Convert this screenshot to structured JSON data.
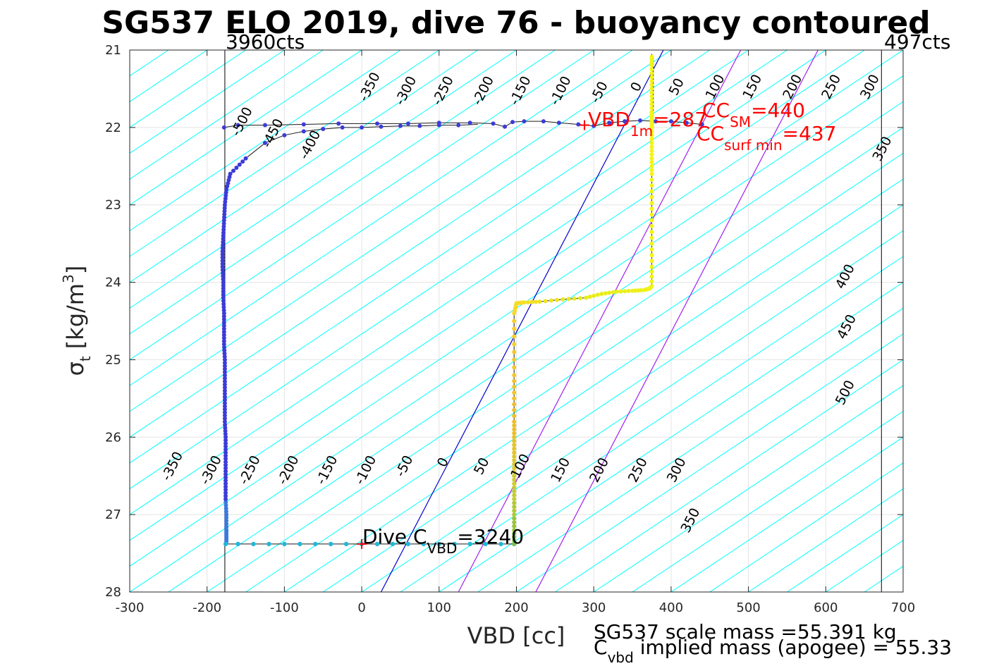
{
  "chart_data": {
    "type": "line",
    "title": "SG537 ELO 2019, dive 76 - buoyancy contoured",
    "xlabel": "VBD [cc]",
    "ylabel_main": "σ",
    "ylabel_sub": "t",
    "ylabel_unit": "[kg/m",
    "ylabel_sup": "3",
    "ylabel_close": "]",
    "xlim": [
      -300,
      700
    ],
    "ylim": [
      21,
      28
    ],
    "y_reversed": true,
    "grid": true,
    "x_ticks": [
      "-300",
      "-200",
      "-100",
      "0",
      "100",
      "200",
      "300",
      "400",
      "500",
      "600",
      "700"
    ],
    "y_ticks": [
      "21",
      "22",
      "23",
      "24",
      "25",
      "26",
      "27",
      "28"
    ],
    "contour_color": "#00ffff",
    "contour_step": 50,
    "contour_slope_per_sigma": -150,
    "contour_zero_x_at_sigma_21": 500,
    "contour_labels": [
      {
        "text": "-350",
        "x": 15,
        "y": 21.5
      },
      {
        "text": "-300",
        "x": 62,
        "y": 21.55
      },
      {
        "text": "-250",
        "x": 110,
        "y": 21.55
      },
      {
        "text": "-200",
        "x": 162,
        "y": 21.55
      },
      {
        "text": "-150",
        "x": 210,
        "y": 21.55
      },
      {
        "text": "-100",
        "x": 262,
        "y": 21.55
      },
      {
        "text": "-50",
        "x": 312,
        "y": 21.57
      },
      {
        "text": "0",
        "x": 360,
        "y": 21.5
      },
      {
        "text": "50",
        "x": 412,
        "y": 21.5
      },
      {
        "text": "100",
        "x": 462,
        "y": 21.5
      },
      {
        "text": "150",
        "x": 510,
        "y": 21.5
      },
      {
        "text": "200",
        "x": 562,
        "y": 21.5
      },
      {
        "text": "250",
        "x": 612,
        "y": 21.5
      },
      {
        "text": "300",
        "x": 662,
        "y": 21.5
      },
      {
        "text": "-500",
        "x": -150,
        "y": 21.95
      },
      {
        "text": "-450",
        "x": -110,
        "y": 22.1
      },
      {
        "text": "-400",
        "x": -62,
        "y": 22.25
      },
      {
        "text": "350",
        "x": 678,
        "y": 22.3
      },
      {
        "text": "400",
        "x": 630,
        "y": 23.95
      },
      {
        "text": "450",
        "x": 632,
        "y": 24.6
      },
      {
        "text": "500",
        "x": 630,
        "y": 25.45
      },
      {
        "text": "-350",
        "x": -240,
        "y": 26.4
      },
      {
        "text": "-300",
        "x": -190,
        "y": 26.45
      },
      {
        "text": "-250",
        "x": -140,
        "y": 26.45
      },
      {
        "text": "-200",
        "x": -90,
        "y": 26.45
      },
      {
        "text": "-150",
        "x": -40,
        "y": 26.45
      },
      {
        "text": "-100",
        "x": 10,
        "y": 26.45
      },
      {
        "text": "-50",
        "x": 60,
        "y": 26.4
      },
      {
        "text": "0",
        "x": 110,
        "y": 26.35
      },
      {
        "text": "50",
        "x": 160,
        "y": 26.4
      },
      {
        "text": "100",
        "x": 210,
        "y": 26.4
      },
      {
        "text": "150",
        "x": 262,
        "y": 26.45
      },
      {
        "text": "200",
        "x": 312,
        "y": 26.45
      },
      {
        "text": "250",
        "x": 362,
        "y": 26.45
      },
      {
        "text": "300",
        "x": 412,
        "y": 26.45
      },
      {
        "text": "350",
        "x": 430,
        "y": 27.1
      }
    ],
    "special_lines": [
      {
        "name": "",
        "color": "#0000cc",
        "x_at_21": 390,
        "x_at_28": 25
      },
      {
        "name": "",
        "color": "#a020f0",
        "x_at_21": 490,
        "x_at_28": 125
      },
      {
        "name": "",
        "color": "#a020f0",
        "x_at_21": 590,
        "x_at_28": 225
      }
    ],
    "vertical_lines": [
      {
        "x": -177,
        "label": "3960cts"
      },
      {
        "x": 672,
        "label": "497cts"
      },
      {
        "x": 377,
        "y_from": 21.1,
        "y_to": 22.0,
        "label": ""
      }
    ],
    "dive_series": {
      "color": "#3c3cd8",
      "x": [
        -175,
        -175,
        -175,
        -176,
        -176,
        -176,
        -176,
        -176,
        -177,
        -177,
        -177,
        -177,
        -177,
        -178,
        -178,
        -178,
        -179,
        -179,
        -180,
        -180,
        -179,
        -178,
        -177,
        -175,
        -170,
        -150,
        -125,
        -100,
        -75,
        -50,
        -25,
        0,
        25,
        50,
        75,
        100,
        125,
        150
      ],
      "y": [
        27.35,
        27.2,
        27.0,
        26.8,
        26.6,
        26.4,
        26.2,
        26.0,
        25.8,
        25.6,
        25.4,
        25.2,
        25.0,
        24.8,
        24.6,
        24.4,
        24.2,
        24.0,
        23.8,
        23.6,
        23.4,
        23.2,
        23.0,
        22.8,
        22.6,
        22.4,
        22.2,
        22.1,
        22.05,
        22.02,
        22.0,
        22.0,
        21.99,
        21.98,
        21.98,
        21.97,
        21.97,
        21.96
      ]
    },
    "bottom_series": {
      "color": "#22b8d8",
      "x": [
        -176,
        -160,
        -140,
        -120,
        -100,
        -80,
        -60,
        -40,
        -20,
        0,
        20,
        40,
        60,
        80,
        100,
        120,
        140,
        160,
        180,
        197
      ],
      "y": [
        27.38,
        27.38,
        27.38,
        27.38,
        27.38,
        27.38,
        27.38,
        27.38,
        27.38,
        27.38,
        27.38,
        27.38,
        27.38,
        27.38,
        27.38,
        27.38,
        27.38,
        27.38,
        27.38,
        27.38
      ]
    },
    "top_series": {
      "color": "#3c3cd8",
      "x": [
        -178,
        -160,
        -125,
        -75,
        -30,
        20,
        60,
        100,
        140,
        170,
        185,
        195,
        210,
        235,
        255,
        280,
        300,
        320,
        340,
        360,
        380,
        400,
        420,
        440
      ],
      "y": [
        22.0,
        21.97,
        21.97,
        21.96,
        21.95,
        21.95,
        21.95,
        21.94,
        21.94,
        21.95,
        21.99,
        21.93,
        21.92,
        21.92,
        21.94,
        21.96,
        21.98,
        21.94,
        21.92,
        21.91,
        21.92,
        21.92,
        21.94,
        21.96
      ]
    },
    "climb_series": {
      "x": [
        197,
        197,
        197,
        197,
        197,
        197,
        197,
        197,
        197,
        197,
        197,
        197,
        197,
        200,
        210,
        230,
        260,
        290,
        310,
        330,
        350,
        365,
        372,
        375,
        375,
        375,
        375,
        375,
        375,
        375,
        375,
        375,
        375,
        375,
        375,
        375,
        375,
        375
      ],
      "y": [
        27.38,
        27.2,
        27.0,
        26.8,
        26.6,
        26.4,
        26.2,
        26.0,
        25.8,
        25.5,
        25.2,
        24.8,
        24.4,
        24.27,
        24.26,
        24.25,
        24.22,
        24.2,
        24.15,
        24.12,
        24.11,
        24.1,
        24.08,
        24.05,
        23.8,
        23.5,
        23.2,
        22.9,
        22.6,
        22.4,
        22.2,
        22.0,
        21.9,
        21.8,
        21.6,
        21.4,
        21.2,
        21.05
      ],
      "colors": [
        "#80c040",
        "#99c43a",
        "#b0c836",
        "#c4cc32",
        "#d0cc30",
        "#dcc82e",
        "#e4c42c",
        "#eac02a",
        "#eec02a",
        "#f2c42a",
        "#f6c82a",
        "#f8d028",
        "#f8d828",
        "#f6dc26",
        "#f2e024",
        "#eee422",
        "#eae820",
        "#e8ec1e",
        "#e8ee1c",
        "#eaf01c",
        "#ecf01a",
        "#eef218",
        "#f0f216",
        "#f0f416",
        "#f2f416",
        "#f2f416",
        "#f2f418",
        "#f2f418",
        "#f2f418",
        "#f2f418",
        "#f2f418",
        "#f2f418",
        "#f2f418",
        "#f2f418",
        "#f2f418",
        "#f2f418",
        "#f2f418",
        "#f2f418"
      ]
    },
    "annotations": {
      "dive_c_vbd": {
        "main": "Dive C",
        "sub": "VBD",
        "value": "=3240",
        "x": 0,
        "y": 27.38,
        "marker": "+"
      },
      "vbd_1m": {
        "main": "VBD",
        "sub": "1m",
        "value": "=287",
        "x": 288,
        "y": 21.97,
        "marker": "+"
      },
      "cc_sm": {
        "main": "CC",
        "sub": "SM",
        "value": "=440"
      },
      "cc_surf_min": {
        "main": "CC",
        "sub": "surf min",
        "value": "=437"
      }
    },
    "footer": {
      "scale_mass": "SG537 scale mass =55.391 kg",
      "cvbd_main": "C",
      "cvbd_sub": "vbd",
      "cvbd_rest": " implied mass (apogee) = 55.33"
    }
  }
}
